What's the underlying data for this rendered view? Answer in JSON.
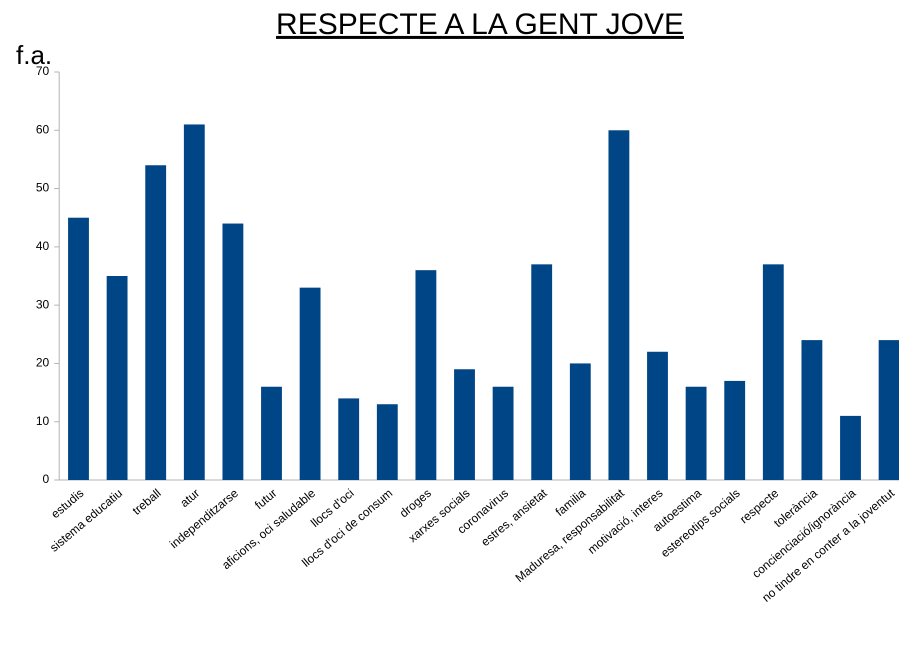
{
  "chart_data": {
    "type": "bar",
    "title": "RESPECTE A LA GENT JOVE",
    "y_label": "f.a.",
    "categories": [
      "estudis",
      "sistema educatiu",
      "treball",
      "atur",
      "independitzarse",
      "futur",
      "aficions, oci saludable",
      "llocs d'oci",
      "llocs d'oci de consum",
      "droges",
      "xarxes socials",
      "coronavirus",
      "estres, ansietat",
      "familia",
      "Maduresa, responsabilitat",
      "motivació, interes",
      "autoestima",
      "estereotips socials",
      "respecte",
      "tolerància",
      "concienciació/ignorància",
      "no tindre en conter a la joventut"
    ],
    "values": [
      45,
      35,
      54,
      61,
      44,
      16,
      33,
      14,
      13,
      36,
      19,
      16,
      37,
      20,
      60,
      22,
      16,
      17,
      37,
      24,
      11,
      24
    ],
    "color": "#004586",
    "ylim": [
      0,
      70
    ],
    "yticks": [
      0,
      10,
      20,
      30,
      40,
      50,
      60,
      70
    ],
    "grid": false
  }
}
